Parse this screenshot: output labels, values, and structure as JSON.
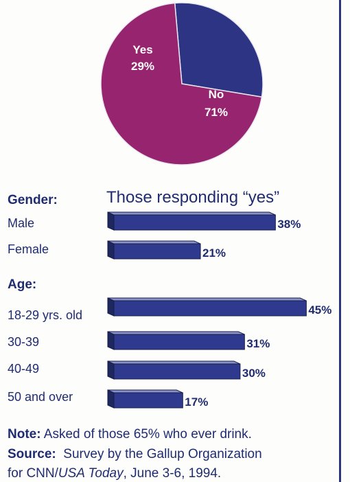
{
  "colors": {
    "yes": "#2d3483",
    "no": "#96246e",
    "bar_front": "#2f3a8f",
    "bar_top": "#8a93c8",
    "bar_side": "#1f275f",
    "text": "#1f2c70"
  },
  "pie": {
    "slices": [
      {
        "label": "Yes",
        "value_text": "29%",
        "value": 29
      },
      {
        "label": "No",
        "value_text": "71%",
        "value": 71
      }
    ]
  },
  "chart_data": {
    "type": "bar",
    "subtitle": "Those responding “yes”",
    "groups": [
      {
        "heading": "Gender:",
        "categories": [
          "Male",
          "Female"
        ],
        "values": [
          38,
          21
        ],
        "value_labels": [
          "38%",
          "21%"
        ]
      },
      {
        "heading": "Age:",
        "categories": [
          "18-29 yrs. old",
          "30-39",
          "40-49",
          "50 and over"
        ],
        "values": [
          45,
          31,
          30,
          17
        ],
        "value_labels": [
          "45%",
          "31%",
          "30%",
          "17%"
        ]
      }
    ]
  },
  "notes": {
    "note_label": "Note:",
    "note_text": " Asked of those 65% who ever drink.",
    "source_label": "Source:",
    "source_text": "  Survey by the Gallup Organization",
    "source_line2_pre": "for CNN/",
    "source_line2_italic": "USA Today",
    "source_line2_post": ", June 3-6, 1994."
  }
}
